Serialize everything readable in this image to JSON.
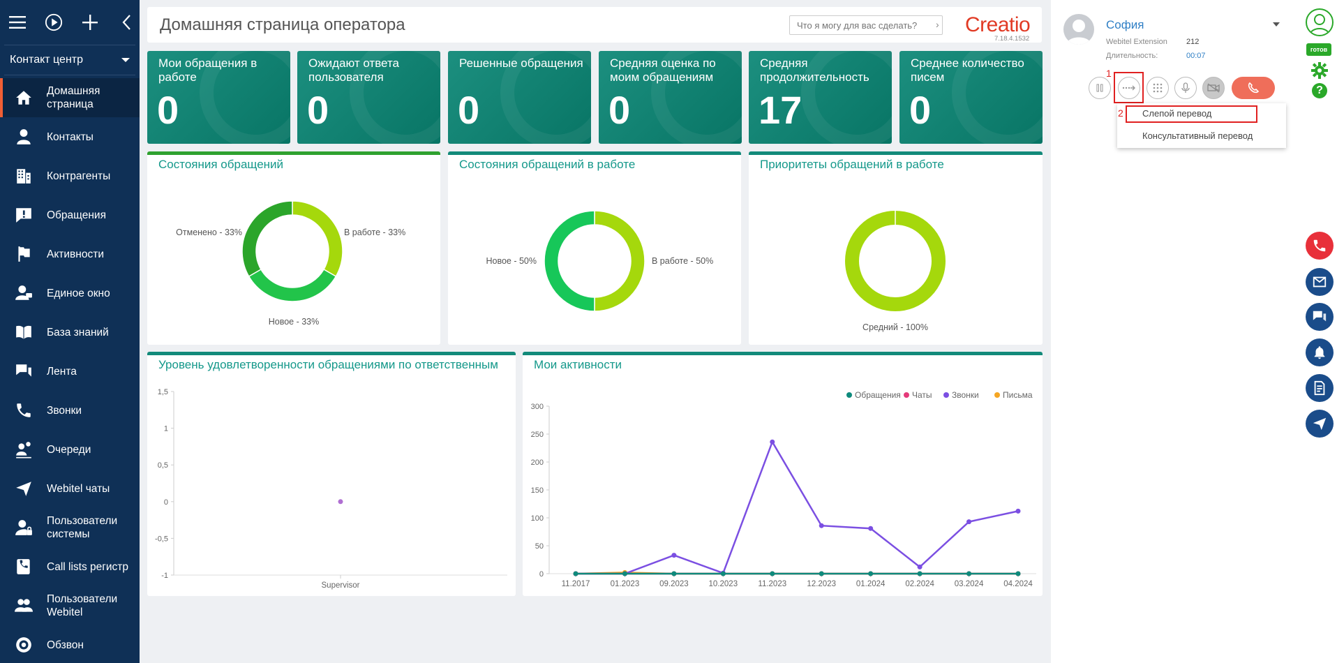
{
  "sidebar": {
    "section": "Контакт центр",
    "items": [
      {
        "label": "Домашняя страница",
        "icon": "home-icon",
        "active": true
      },
      {
        "label": "Контакты",
        "icon": "person-icon"
      },
      {
        "label": "Контрагенты",
        "icon": "building-icon"
      },
      {
        "label": "Обращения",
        "icon": "exclamation-icon"
      },
      {
        "label": "Активности",
        "icon": "flag-icon"
      },
      {
        "label": "Единое окно",
        "icon": "user-monitor-icon"
      },
      {
        "label": "База знаний",
        "icon": "book-icon"
      },
      {
        "label": "Лента",
        "icon": "chat-icon"
      },
      {
        "label": "Звонки",
        "icon": "phone-icon"
      },
      {
        "label": "Очереди",
        "icon": "queue-icon"
      },
      {
        "label": "Webitel чаты",
        "icon": "send-icon"
      },
      {
        "label": "Пользователи системы",
        "icon": "user-lock-icon"
      },
      {
        "label": "Call lists регистр",
        "icon": "call-list-icon"
      },
      {
        "label": "Пользователи Webitel",
        "icon": "users-icon"
      },
      {
        "label": "Обзвон",
        "icon": "dial-icon"
      }
    ]
  },
  "header": {
    "title": "Домашняя страница оператора",
    "search_placeholder": "Что я могу для вас сделать?",
    "logo": "Creatio",
    "version": "7.18.4.1532"
  },
  "kpis": [
    {
      "title": "Мои обращения в работе",
      "value": "0"
    },
    {
      "title": "Ожидают ответа пользователя",
      "value": "0"
    },
    {
      "title": "Решенные обращения",
      "value": "0"
    },
    {
      "title": "Средняя оценка по моим обращениям",
      "value": "0"
    },
    {
      "title": "Средняя продолжительность",
      "value": "17"
    },
    {
      "title": "Среднее количество писем",
      "value": "0"
    }
  ],
  "widgets": {
    "states": {
      "title": "Состояния обращений",
      "labels": [
        "Отменено - 33%",
        "В работе - 33%",
        "Новое - 33%"
      ]
    },
    "states_work": {
      "title": "Состояния обращений в работе",
      "labels": [
        "Новое - 50%",
        "В работе - 50%"
      ]
    },
    "priorities": {
      "title": "Приоритеты обращений в работе",
      "labels": [
        "Средний - 100%"
      ]
    },
    "satisfaction": {
      "title": "Уровень удовлетворенности обращениями по ответственным"
    },
    "activities": {
      "title": "Мои активности"
    }
  },
  "chart_data": [
    {
      "type": "pie",
      "title": "Состояния обращений",
      "categories": [
        "Отменено",
        "В работе",
        "Новое"
      ],
      "values": [
        33,
        33,
        33
      ],
      "colors": [
        "#2ba52a",
        "#a5d80c",
        "#22c44a"
      ]
    },
    {
      "type": "pie",
      "title": "Состояния обращений в работе",
      "categories": [
        "Новое",
        "В работе"
      ],
      "values": [
        50,
        50
      ],
      "colors": [
        "#17c759",
        "#a5d80c"
      ]
    },
    {
      "type": "pie",
      "title": "Приоритеты обращений в работе",
      "categories": [
        "Средний"
      ],
      "values": [
        100
      ],
      "colors": [
        "#a5d80c"
      ]
    },
    {
      "type": "scatter",
      "title": "Уровень удовлетворенности обращениями по ответственным",
      "categories": [
        "Supervisor"
      ],
      "values": [
        0
      ],
      "yticks": [
        "1,5",
        "1",
        "0,5",
        "0",
        "-0,5",
        "-1"
      ],
      "ylim": [
        -1,
        1.5
      ],
      "color": "#b06fd2"
    },
    {
      "type": "line",
      "title": "Мои активности",
      "categories": [
        "11.2017",
        "01.2023",
        "09.2023",
        "10.2023",
        "11.2023",
        "12.2023",
        "01.2024",
        "02.2024",
        "03.2024",
        "04.2024"
      ],
      "yticks": [
        "300",
        "250",
        "200",
        "150",
        "100",
        "50",
        "0"
      ],
      "ylim": [
        0,
        300
      ],
      "legend_position": "top-right",
      "series": [
        {
          "name": "Обращения",
          "color": "#0e8a7c",
          "values": [
            0,
            0,
            0,
            0,
            0,
            0,
            0,
            0,
            0,
            0
          ]
        },
        {
          "name": "Чаты",
          "color": "#e53a7a",
          "values": [
            0,
            0,
            0,
            0,
            0,
            0,
            0,
            0,
            0,
            0
          ]
        },
        {
          "name": "Звонки",
          "color": "#7b4fe2",
          "values": [
            0,
            0,
            33,
            1,
            236,
            86,
            81,
            12,
            93,
            112
          ]
        },
        {
          "name": "Письма",
          "color": "#f5a623",
          "values": [
            0,
            2,
            0,
            0,
            0,
            0,
            0,
            0,
            0,
            0
          ]
        }
      ]
    }
  ],
  "operator": {
    "name": "София",
    "ext_label": "Webitel Extension",
    "ext_value": "212",
    "dur_label": "Длительность:",
    "dur_value": "00:07",
    "status": "готов"
  },
  "transfer_menu": {
    "marker1": "1",
    "marker2": "2",
    "items": [
      "Слепой перевод",
      "Консультативный перевод"
    ]
  },
  "colors": {
    "sidebar": "#0f3056",
    "accent": "#f05e34",
    "kpi": "#138a7a",
    "brand": "#e13a24"
  }
}
